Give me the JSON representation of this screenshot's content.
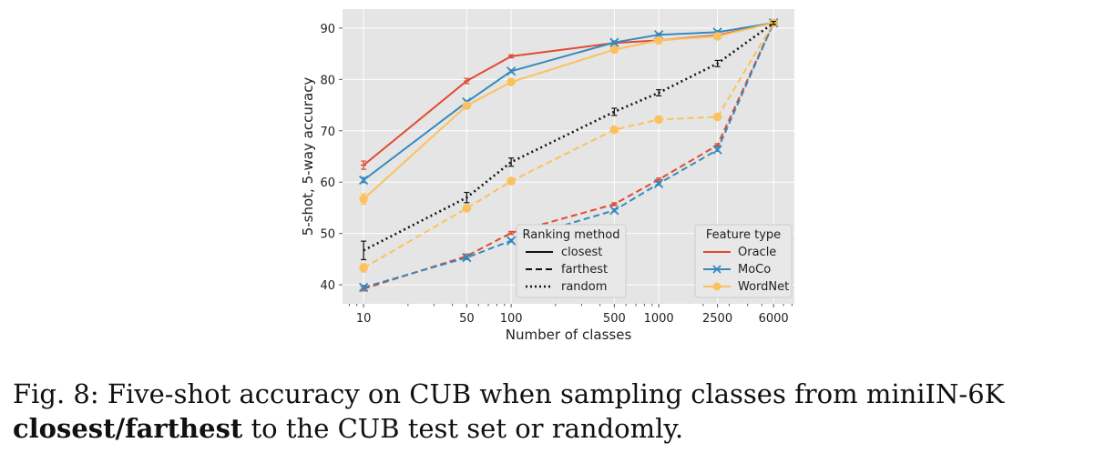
{
  "chart_data": {
    "type": "line",
    "xlabel": "Number of classes",
    "ylabel": "5-shot, 5-way accuracy",
    "x_scale": "log",
    "x_ticks": [
      "10",
      "50",
      "100",
      "500",
      "1000",
      "2500",
      "6000"
    ],
    "y_ticks": [
      "40",
      "50",
      "60",
      "70",
      "80",
      "90"
    ],
    "ylim": [
      36.3,
      93.7
    ],
    "grid": true,
    "x": [
      10,
      50,
      100,
      500,
      1000,
      2500,
      6000
    ],
    "legends": {
      "ranking": {
        "title": "Ranking method",
        "placement": "lower-center",
        "entries": [
          {
            "label": "closest",
            "style": "solid"
          },
          {
            "label": "farthest",
            "style": "dashed"
          },
          {
            "label": "random",
            "style": "dotted"
          }
        ]
      },
      "feature": {
        "title": "Feature type",
        "placement": "lower-right",
        "entries": [
          {
            "label": "Oracle",
            "color": "#e24a33",
            "marker": "tick"
          },
          {
            "label": "MoCo",
            "color": "#348abd",
            "marker": "x"
          },
          {
            "label": "WordNet",
            "color": "#fbc15e",
            "marker": "circle"
          }
        ]
      }
    },
    "series": [
      {
        "feature": "Oracle",
        "method": "closest",
        "color": "#e24a33",
        "style": "solid",
        "marker": "tick",
        "values": [
          63.3,
          79.7,
          84.5,
          87.1,
          87.6,
          88.6,
          91.0
        ],
        "err": [
          0.8,
          0.5,
          0.3,
          0.3,
          0.3,
          0.3,
          0.3
        ]
      },
      {
        "feature": "MoCo",
        "method": "closest",
        "color": "#348abd",
        "style": "solid",
        "marker": "x",
        "values": [
          60.4,
          75.6,
          81.6,
          87.2,
          88.7,
          89.2,
          91.0
        ],
        "err": [
          0.5,
          0.3,
          0.3,
          0.3,
          0.3,
          0.3,
          0.3
        ]
      },
      {
        "feature": "WordNet",
        "method": "closest",
        "color": "#fbc15e",
        "style": "solid",
        "marker": "circle",
        "values": [
          56.7,
          74.9,
          79.5,
          85.8,
          87.6,
          88.4,
          91.0
        ],
        "err": [
          1.0,
          0.5,
          0.3,
          0.3,
          0.3,
          0.3,
          0.3
        ]
      },
      {
        "feature": "Oracle",
        "method": "farthest",
        "color": "#e24a33",
        "style": "dashed",
        "marker": "tick",
        "values": [
          39.2,
          45.6,
          50.1,
          55.7,
          60.5,
          67.2,
          91.0
        ],
        "err": [
          0.4,
          0.4,
          0.3,
          0.3,
          0.3,
          0.3,
          0.3
        ]
      },
      {
        "feature": "MoCo",
        "method": "farthest",
        "color": "#348abd",
        "style": "dashed",
        "marker": "x",
        "values": [
          39.5,
          45.3,
          48.6,
          54.5,
          59.7,
          66.3,
          91.0
        ],
        "err": [
          0.4,
          0.4,
          0.3,
          0.3,
          0.3,
          0.3,
          0.3
        ]
      },
      {
        "feature": "WordNet",
        "method": "farthest",
        "color": "#fbc15e",
        "style": "dashed",
        "marker": "circle",
        "values": [
          43.3,
          54.9,
          60.2,
          70.2,
          72.2,
          72.7,
          91.0
        ],
        "err": [
          0.8,
          0.5,
          0.3,
          0.4,
          0.4,
          0.3,
          0.3
        ]
      },
      {
        "feature": "random",
        "method": "random",
        "color": "#111111",
        "style": "dotted",
        "marker": "none",
        "values": [
          46.7,
          57.0,
          63.9,
          73.7,
          77.4,
          83.1,
          91.0
        ],
        "err": [
          1.8,
          1.0,
          0.8,
          0.7,
          0.6,
          0.6,
          0.3
        ]
      }
    ]
  },
  "caption": {
    "prefix": "Fig. 8: Five-shot accuracy on CUB when sampling classes from miniIN-6K ",
    "bold": "closest/farthest",
    "suffix": " to the CUB test set or randomly."
  }
}
